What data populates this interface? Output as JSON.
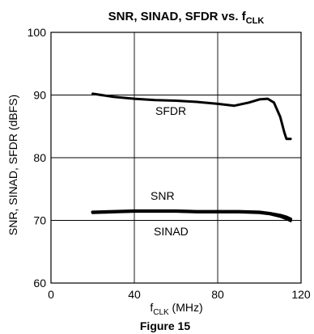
{
  "chart_data": {
    "type": "line",
    "title": "SNR, SINAD, SFDR vs. f",
    "title_subscript": "CLK",
    "xlabel": "f",
    "xlabel_subscript": "CLK",
    "xlabel_suffix": " (MHz)",
    "ylabel": "SNR, SINAD, SFDR (dBFS)",
    "xlim": [
      0,
      120
    ],
    "ylim": [
      60,
      100
    ],
    "xticks": [
      0,
      40,
      80,
      120
    ],
    "yticks": [
      60,
      70,
      80,
      90,
      100
    ],
    "grid": true,
    "series": [
      {
        "name": "SFDR",
        "x": [
          20,
          30,
          40,
          50,
          60,
          70,
          80,
          88,
          95,
          100,
          104,
          107,
          110,
          112,
          113,
          115
        ],
        "y": [
          90.2,
          89.7,
          89.4,
          89.2,
          89.1,
          88.9,
          88.6,
          88.3,
          88.8,
          89.3,
          89.4,
          88.8,
          86.5,
          84.0,
          83.0,
          83.0
        ]
      },
      {
        "name": "SNR",
        "x": [
          20,
          30,
          40,
          50,
          60,
          70,
          80,
          90,
          100,
          105,
          110,
          113,
          115
        ],
        "y": [
          71.3,
          71.4,
          71.5,
          71.5,
          71.5,
          71.4,
          71.4,
          71.4,
          71.3,
          71.1,
          70.8,
          70.5,
          70.2
        ]
      },
      {
        "name": "SINAD",
        "x": [
          20,
          30,
          40,
          50,
          60,
          70,
          80,
          90,
          100,
          105,
          110,
          113,
          115
        ],
        "y": [
          71.2,
          71.3,
          71.4,
          71.4,
          71.4,
          71.3,
          71.3,
          71.3,
          71.2,
          71.0,
          70.6,
          70.2,
          69.9
        ]
      }
    ],
    "caption": "Figure 15"
  },
  "colors": {
    "line": "#000000",
    "grid": "#000000",
    "background": "#ffffff"
  }
}
